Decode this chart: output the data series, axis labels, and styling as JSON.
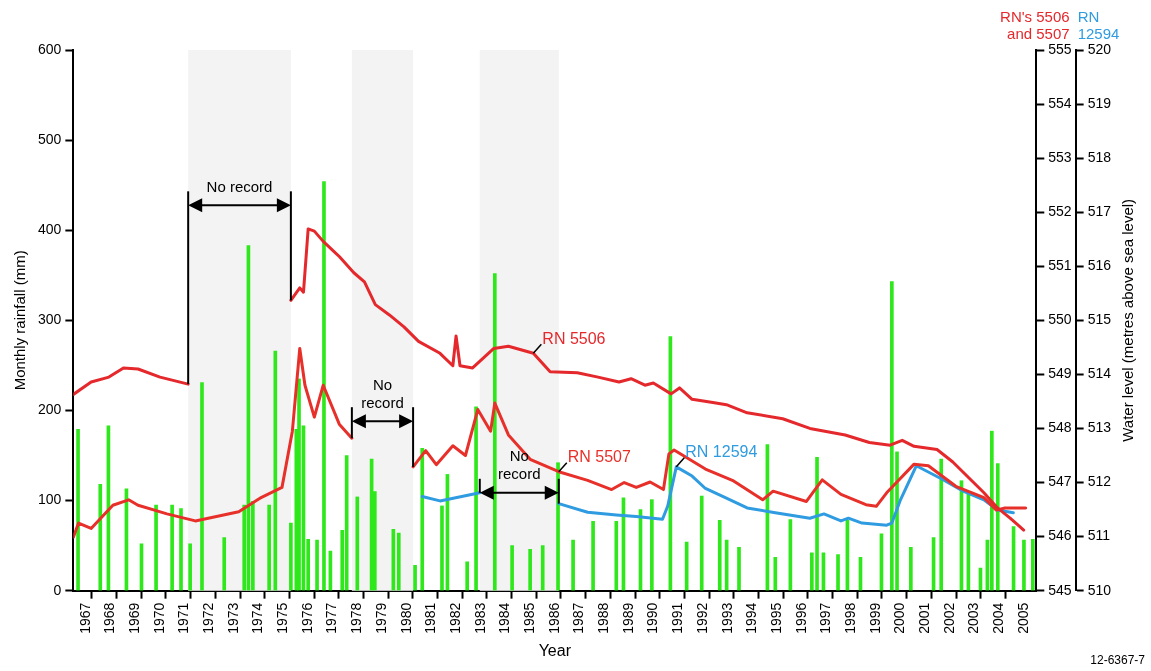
{
  "chart_data": {
    "type": "bar",
    "xlabel": "Year",
    "ylabel": "Monthly rainfall (mm)",
    "y3label": "Water level (metres above sea level)",
    "xlim": [
      1967,
      2006
    ],
    "xticks": [
      {
        "value": 1967.5,
        "label": "1967"
      },
      {
        "value": 1968,
        "label": null
      },
      {
        "value": 1968.5,
        "label": "1968"
      },
      {
        "value": 1969,
        "label": null
      },
      {
        "value": 1969.5,
        "label": "1969"
      },
      {
        "value": 1970,
        "label": null
      },
      {
        "value": 1970.5,
        "label": "1970"
      },
      {
        "value": 1971,
        "label": null
      },
      {
        "value": 1971.5,
        "label": "1971"
      },
      {
        "value": 1972,
        "label": null
      },
      {
        "value": 1972.5,
        "label": "1972"
      },
      {
        "value": 1973,
        "label": null
      },
      {
        "value": 1973.5,
        "label": "1973"
      },
      {
        "value": 1974,
        "label": null
      },
      {
        "value": 1974.5,
        "label": "1974"
      },
      {
        "value": 1975,
        "label": null
      },
      {
        "value": 1975.5,
        "label": "1975"
      },
      {
        "value": 1976,
        "label": null
      },
      {
        "value": 1976.5,
        "label": "1976"
      },
      {
        "value": 1977,
        "label": null
      },
      {
        "value": 1977.5,
        "label": "1977"
      },
      {
        "value": 1978,
        "label": null
      },
      {
        "value": 1978.5,
        "label": "1978"
      },
      {
        "value": 1979,
        "label": null
      },
      {
        "value": 1979.5,
        "label": "1979"
      },
      {
        "value": 1980,
        "label": null
      },
      {
        "value": 1980.5,
        "label": "1980"
      },
      {
        "value": 1981,
        "label": null
      },
      {
        "value": 1981.5,
        "label": "1981"
      },
      {
        "value": 1982,
        "label": null
      },
      {
        "value": 1982.5,
        "label": "1982"
      },
      {
        "value": 1983,
        "label": null
      },
      {
        "value": 1983.5,
        "label": "1983"
      },
      {
        "value": 1984,
        "label": null
      },
      {
        "value": 1984.5,
        "label": "1984"
      },
      {
        "value": 1985,
        "label": null
      },
      {
        "value": 1985.5,
        "label": "1985"
      },
      {
        "value": 1986,
        "label": null
      },
      {
        "value": 1986.5,
        "label": "1986"
      },
      {
        "value": 1987,
        "label": null
      },
      {
        "value": 1987.5,
        "label": "1987"
      },
      {
        "value": 1988,
        "label": null
      },
      {
        "value": 1988.5,
        "label": "1988"
      },
      {
        "value": 1989,
        "label": null
      },
      {
        "value": 1989.5,
        "label": "1989"
      },
      {
        "value": 1990,
        "label": null
      },
      {
        "value": 1990.5,
        "label": "1990"
      },
      {
        "value": 1991,
        "label": null
      },
      {
        "value": 1991.5,
        "label": "1991"
      },
      {
        "value": 1992,
        "label": null
      },
      {
        "value": 1992.5,
        "label": "1992"
      },
      {
        "value": 1993,
        "label": null
      },
      {
        "value": 1993.5,
        "label": "1993"
      },
      {
        "value": 1994,
        "label": null
      },
      {
        "value": 1994.5,
        "label": "1994"
      },
      {
        "value": 1995,
        "label": null
      },
      {
        "value": 1995.5,
        "label": "1995"
      },
      {
        "value": 1996,
        "label": null
      },
      {
        "value": 1996.5,
        "label": "1996"
      },
      {
        "value": 1997,
        "label": null
      },
      {
        "value": 1997.5,
        "label": "1997"
      },
      {
        "value": 1998,
        "label": null
      },
      {
        "value": 1998.5,
        "label": "1998"
      },
      {
        "value": 1999,
        "label": null
      },
      {
        "value": 1999.5,
        "label": "1999"
      },
      {
        "value": 2000,
        "label": null
      },
      {
        "value": 2000.5,
        "label": "2000"
      },
      {
        "value": 2001,
        "label": null
      },
      {
        "value": 2001.5,
        "label": "2001"
      },
      {
        "value": 2002,
        "label": null
      },
      {
        "value": 2002.5,
        "label": "2002"
      },
      {
        "value": 2003,
        "label": null
      },
      {
        "value": 2003.5,
        "label": "2003"
      },
      {
        "value": 2004,
        "label": null
      },
      {
        "value": 2004.5,
        "label": "2004"
      },
      {
        "value": 2005,
        "label": null
      },
      {
        "value": 2005.5,
        "label": "2005"
      }
    ],
    "ylim": [
      0,
      600
    ],
    "yticks": [
      0,
      100,
      200,
      300,
      400,
      500,
      600
    ],
    "y2lim": [
      545,
      555
    ],
    "y2ticks": [
      545,
      546,
      547,
      548,
      549,
      550,
      551,
      552,
      553,
      554,
      555
    ],
    "y3lim": [
      510,
      520
    ],
    "y3ticks": [
      510,
      511,
      512,
      513,
      514,
      515,
      516,
      517,
      518,
      519,
      520
    ],
    "grid": false,
    "legend": false,
    "marker": "none",
    "line_style": "solid",
    "annotations": [
      "RN's 5506 and 5507",
      "RN 12594",
      "12-6367-7"
    ],
    "bands": [
      {
        "axis": "x",
        "from": 1971.65,
        "to": 1975.81,
        "label": "No record",
        "color": "#f3f3f3"
      },
      {
        "axis": "x",
        "from": 1978.28,
        "to": 1980.76,
        "label": "No record",
        "color": "#f3f3f3"
      },
      {
        "axis": "x",
        "from": 1983.46,
        "to": 1986.66,
        "label": "No record",
        "color": "#f3f3f3"
      }
    ],
    "series": [
      {
        "color": "#2ee81b",
        "x": [
          1967.19,
          1968.09,
          1968.42,
          1969.15,
          1969.76,
          1970.35,
          1971.0,
          1971.36,
          1971.73,
          1972.21,
          1973.11,
          1973.92,
          1974.09,
          1974.27,
          1974.93,
          1975.18,
          1975.81,
          1976.03,
          1976.14,
          1976.32,
          1976.51,
          1976.87,
          1977.15,
          1977.41,
          1977.89,
          1978.07,
          1978.5,
          1979.08,
          1979.21,
          1979.96,
          1980.18,
          1980.84,
          1981.13,
          1981.93,
          1982.15,
          1982.95,
          1983.31,
          1984.07,
          1984.77,
          1985.5,
          1986.01,
          1986.63,
          1987.24,
          1988.05,
          1988.99,
          1989.28,
          1989.97,
          1990.43,
          1991.18,
          1991.84,
          1992.45,
          1993.18,
          1993.46,
          1993.96,
          1995.11,
          1995.43,
          1996.04,
          1996.91,
          1997.12,
          1997.38,
          1997.97,
          1998.35,
          1998.88,
          1999.73,
          2000.15,
          2000.36,
          2000.92,
          2001.84,
          2002.15,
          2002.97,
          2003.25,
          2003.74,
          2004.02,
          2004.2,
          2004.44,
          2005.08,
          2005.5,
          2005.86
        ],
        "values": [
          179,
          118,
          183,
          113,
          52,
          95,
          95,
          91,
          52,
          231,
          59,
          95,
          383,
          99,
          95,
          266,
          75,
          179,
          235,
          183,
          57,
          56,
          454,
          44,
          67,
          150,
          104,
          146,
          110,
          68,
          64,
          28,
          158,
          94,
          129,
          32,
          204,
          352,
          50,
          46,
          50,
          142,
          56,
          77,
          77,
          103,
          90,
          101,
          282,
          54,
          105,
          78,
          56,
          48,
          162,
          37,
          79,
          42,
          148,
          42,
          40,
          78,
          37,
          63,
          343,
          154,
          48,
          59,
          146,
          122,
          109,
          25,
          56,
          177,
          141,
          71,
          56,
          57
        ]
      },
      {
        "type": "line",
        "name": "RN 5506",
        "color": "#e4282c",
        "axis": "y2",
        "x": [
          1967.0,
          1967.72,
          1968.44,
          1969.03,
          1969.62,
          1970.51,
          1971.65,
          1973.7,
          1975.81,
          1976.17,
          1976.32,
          1976.51,
          1976.76,
          1977.12,
          1977.77,
          1978.36,
          1978.79,
          1979.23,
          1979.8,
          1980.39,
          1980.98,
          1981.85,
          1982.37,
          1982.5,
          1982.66,
          1983.17,
          1984.03,
          1984.62,
          1985.63,
          1986.31,
          1987.41,
          1988.25,
          1989.1,
          1989.59,
          1990.15,
          1990.49,
          1991.21,
          1991.55,
          1992.06,
          1992.9,
          1993.45,
          1994.29,
          1995.73,
          1996.83,
          1998.26,
          1999.24,
          2000.08,
          2000.57,
          2001.05,
          2001.98,
          2002.62,
          2003.88,
          2004.43,
          2004.94,
          2005.49
        ],
        "values": [
          548.63,
          548.86,
          548.95,
          549.12,
          549.1,
          548.95,
          548.82,
          null,
          550.37,
          550.6,
          550.52,
          551.69,
          551.65,
          551.46,
          551.18,
          550.88,
          550.71,
          550.29,
          550.1,
          549.88,
          549.61,
          549.39,
          549.16,
          549.71,
          549.16,
          549.12,
          549.48,
          549.52,
          549.39,
          549.05,
          549.03,
          548.95,
          548.86,
          548.92,
          548.8,
          548.84,
          548.64,
          548.75,
          548.54,
          548.48,
          548.44,
          548.29,
          548.18,
          548.0,
          547.88,
          547.74,
          547.69,
          547.78,
          547.67,
          547.61,
          547.38,
          546.81,
          546.53,
          546.34,
          546.12
        ]
      },
      {
        "type": "line",
        "name": "RN 5507",
        "color": "#e8302a",
        "axis": "y2",
        "x": [
          1967.0,
          1967.21,
          1967.72,
          1968.6,
          1969.24,
          1969.62,
          1970.79,
          1971.94,
          1973.7,
          1974.56,
          1975.45,
          1975.87,
          1976.17,
          1976.38,
          1976.76,
          1977.12,
          1977.77,
          1978.28,
          1979.5,
          1980.76,
          1981.27,
          1981.7,
          1982.37,
          1982.88,
          1983.38,
          1983.9,
          1984.07,
          1984.62,
          1985.5,
          1986.66,
          1987.83,
          1988.8,
          1989.31,
          1989.8,
          1990.36,
          1990.9,
          1991.12,
          1991.33,
          1992.6,
          1993.74,
          1994.92,
          1995.34,
          1996.69,
          1997.33,
          1998.09,
          1999.1,
          1999.52,
          1999.94,
          2001.05,
          2001.63,
          2002.74,
          2003.88,
          2004.38,
          2004.73,
          2005.57
        ],
        "values": [
          545.99,
          546.25,
          546.15,
          546.58,
          546.68,
          546.58,
          546.42,
          546.29,
          546.46,
          546.71,
          546.91,
          547.95,
          549.48,
          548.8,
          548.21,
          548.8,
          548.08,
          547.82,
          null,
          547.29,
          547.59,
          547.33,
          547.68,
          547.5,
          548.35,
          547.95,
          548.47,
          547.88,
          547.43,
          547.2,
          547.04,
          546.87,
          547.0,
          546.91,
          547.01,
          546.87,
          547.53,
          547.6,
          547.25,
          547.03,
          546.68,
          546.84,
          546.65,
          547.05,
          546.78,
          546.59,
          546.56,
          546.81,
          547.34,
          547.31,
          546.93,
          546.72,
          546.49,
          546.53,
          546.53
        ]
      },
      {
        "type": "line",
        "name": "RN 12594",
        "color": "#2f9be0",
        "axis": "y3",
        "x": [
          1981.13,
          1981.85,
          1982.73,
          1983.46,
          1985.0,
          1986.66,
          1987.83,
          1988.99,
          1989.8,
          1990.86,
          1991.07,
          1991.42,
          1992.06,
          1992.6,
          1993.32,
          1994.29,
          1995.43,
          1996.83,
          1997.4,
          1998.09,
          1998.39,
          1998.94,
          1999.94,
          2000.15,
          2000.5,
          2001.14,
          2002.19,
          2003.04,
          2003.88,
          2004.43,
          2005.07
        ],
        "values": [
          511.74,
          511.66,
          511.74,
          511.81,
          null,
          511.61,
          511.45,
          511.4,
          511.37,
          511.32,
          511.56,
          512.29,
          512.12,
          511.89,
          511.74,
          511.53,
          511.44,
          511.34,
          511.42,
          511.29,
          511.34,
          511.25,
          511.21,
          511.25,
          511.68,
          512.31,
          512.06,
          511.84,
          511.68,
          511.49,
          511.44
        ]
      }
    ]
  }
}
